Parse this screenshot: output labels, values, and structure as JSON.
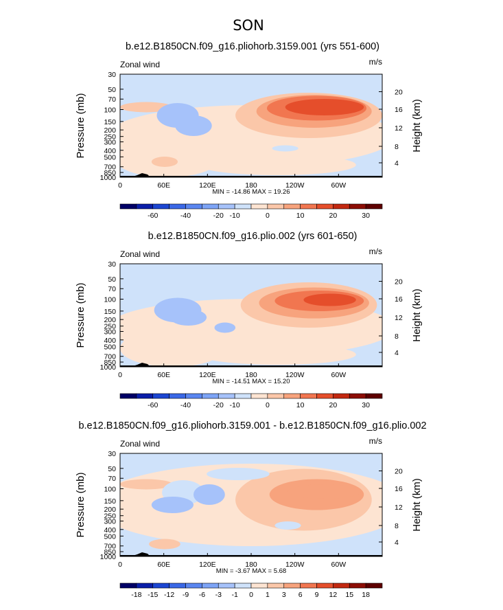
{
  "figure": {
    "season": "SON"
  },
  "chart_data": [
    {
      "type": "heatmap",
      "title": "b.e12.B1850CN.f09_g16.pliohorb.3159.001 (yrs 551-600)",
      "left_label": "Zonal wind",
      "units": "m/s",
      "ylabel": "Pressure (mb)",
      "ylabel_right": "Height (km)",
      "pressure_ticks": [
        "30",
        "50",
        "70",
        "100",
        "150",
        "200",
        "250",
        "300",
        "400",
        "500",
        "700",
        "850",
        "1000"
      ],
      "pressure_values": [
        30,
        50,
        70,
        100,
        150,
        200,
        250,
        300,
        400,
        500,
        700,
        850,
        1000
      ],
      "height_ticks": [
        "20",
        "16",
        "12",
        "8",
        "4"
      ],
      "longitude_ticks": [
        "0",
        "60E",
        "120E",
        "180",
        "120W",
        "60W"
      ],
      "longitude_values": [
        0,
        60,
        120,
        180,
        240,
        300
      ],
      "xlim": [
        0,
        360
      ],
      "min_max_text": "MIN = -14.86   MAX =  19.26",
      "stats": {
        "min": -14.86,
        "max": 19.26
      },
      "colorbar": {
        "levels": [
          -70,
          -60,
          -50,
          -40,
          -30,
          -20,
          -10,
          -5,
          0,
          5,
          10,
          15,
          20,
          25,
          30
        ],
        "tick_labels": [
          "-60",
          "-40",
          "-20",
          "-10",
          "0",
          "10",
          "20",
          "30"
        ],
        "colors": [
          "#000066",
          "#0a1ea8",
          "#1c46d2",
          "#3a68e6",
          "#5a86f0",
          "#7da4f6",
          "#a6c2fa",
          "#cfe2fa",
          "#fde4d2",
          "#fbc7a9",
          "#f7a37d",
          "#f17650",
          "#e54e2b",
          "#c22810",
          "#8c0d05",
          "#5e0000"
        ]
      }
    },
    {
      "type": "heatmap",
      "title": "b.e12.B1850CN.f09_g16.plio.002 (yrs 601-650)",
      "left_label": "Zonal wind",
      "units": "m/s",
      "ylabel": "Pressure (mb)",
      "ylabel_right": "Height (km)",
      "pressure_ticks": [
        "30",
        "50",
        "70",
        "100",
        "150",
        "200",
        "250",
        "300",
        "400",
        "500",
        "700",
        "850",
        "1000"
      ],
      "pressure_values": [
        30,
        50,
        70,
        100,
        150,
        200,
        250,
        300,
        400,
        500,
        700,
        850,
        1000
      ],
      "height_ticks": [
        "20",
        "16",
        "12",
        "8",
        "4"
      ],
      "longitude_ticks": [
        "0",
        "60E",
        "120E",
        "180",
        "120W",
        "60W"
      ],
      "longitude_values": [
        0,
        60,
        120,
        180,
        240,
        300
      ],
      "xlim": [
        0,
        360
      ],
      "min_max_text": "MIN = -14.51   MAX =  15.20",
      "stats": {
        "min": -14.51,
        "max": 15.2
      },
      "colorbar": {
        "levels": [
          -70,
          -60,
          -50,
          -40,
          -30,
          -20,
          -10,
          -5,
          0,
          5,
          10,
          15,
          20,
          25,
          30
        ],
        "tick_labels": [
          "-60",
          "-40",
          "-20",
          "-10",
          "0",
          "10",
          "20",
          "30"
        ],
        "colors": [
          "#000066",
          "#0a1ea8",
          "#1c46d2",
          "#3a68e6",
          "#5a86f0",
          "#7da4f6",
          "#a6c2fa",
          "#cfe2fa",
          "#fde4d2",
          "#fbc7a9",
          "#f7a37d",
          "#f17650",
          "#e54e2b",
          "#c22810",
          "#8c0d05",
          "#5e0000"
        ]
      }
    },
    {
      "type": "heatmap",
      "title": "b.e12.B1850CN.f09_g16.pliohorb.3159.001 - b.e12.B1850CN.f09_g16.plio.002",
      "left_label": "Zonal wind",
      "units": "m/s",
      "ylabel": "Pressure (mb)",
      "ylabel_right": "Height (km)",
      "pressure_ticks": [
        "30",
        "50",
        "70",
        "100",
        "150",
        "200",
        "250",
        "300",
        "400",
        "500",
        "700",
        "850",
        "1000"
      ],
      "pressure_values": [
        30,
        50,
        70,
        100,
        150,
        200,
        250,
        300,
        400,
        500,
        700,
        850,
        1000
      ],
      "height_ticks": [
        "20",
        "16",
        "12",
        "8",
        "4"
      ],
      "longitude_ticks": [
        "0",
        "60E",
        "120E",
        "180",
        "120W",
        "60W"
      ],
      "longitude_values": [
        0,
        60,
        120,
        180,
        240,
        300
      ],
      "xlim": [
        0,
        360
      ],
      "min_max_text": "MIN = -3.67   MAX =  5.68",
      "stats": {
        "min": -3.67,
        "max": 5.68
      },
      "colorbar": {
        "levels": [
          -18,
          -15,
          -12,
          -9,
          -6,
          -3,
          -1,
          0,
          1,
          3,
          6,
          9,
          12,
          15,
          18
        ],
        "tick_labels": [
          "-18",
          "-15",
          "-12",
          "-9",
          "-6",
          "-3",
          "-1",
          "0",
          "1",
          "3",
          "6",
          "9",
          "12",
          "15",
          "18"
        ],
        "colors": [
          "#000066",
          "#0a1ea8",
          "#1c46d2",
          "#3a68e6",
          "#5a86f0",
          "#7da4f6",
          "#a6c2fa",
          "#cfe2fa",
          "#fde4d2",
          "#fbc7a9",
          "#f7a37d",
          "#f17650",
          "#e54e2b",
          "#c22810",
          "#8c0d05",
          "#5e0000"
        ]
      }
    }
  ]
}
